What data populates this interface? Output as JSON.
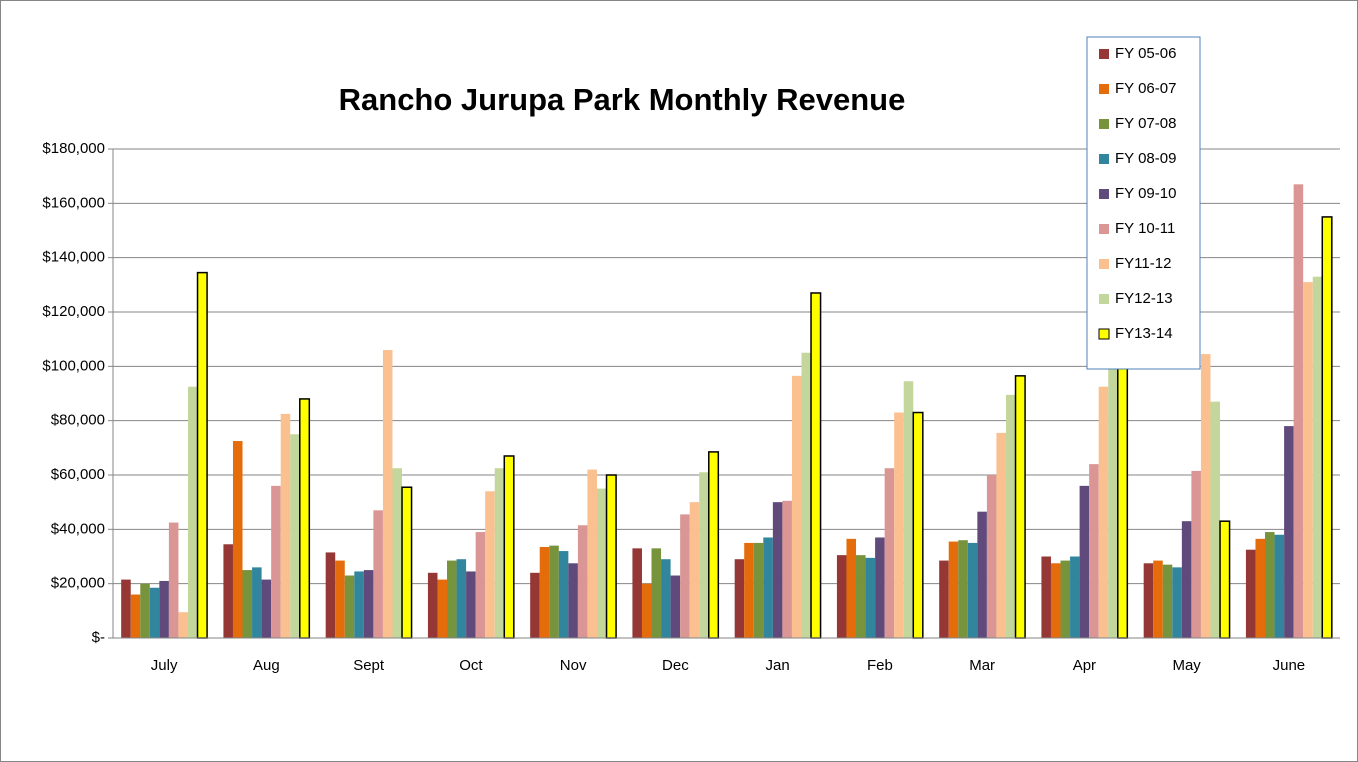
{
  "chart_data": {
    "type": "bar",
    "title": "Rancho Jurupa Park Monthly Revenue",
    "categories": [
      "July",
      "Aug",
      "Sept",
      "Oct",
      "Nov",
      "Dec",
      "Jan",
      "Feb",
      "Mar",
      "Apr",
      "May",
      "June"
    ],
    "series": [
      {
        "name": "FY 05-06",
        "color": "#953735",
        "values": [
          21500,
          34500,
          31500,
          24000,
          24000,
          33000,
          29000,
          30500,
          28500,
          30000,
          27500,
          32500
        ]
      },
      {
        "name": "FY 06-07",
        "color": "#e46c0a",
        "values": [
          16000,
          72500,
          28500,
          21500,
          33500,
          20000,
          35000,
          36500,
          35500,
          27500,
          28500,
          36500
        ]
      },
      {
        "name": "FY 07-08",
        "color": "#77933c",
        "values": [
          20000,
          25000,
          23000,
          28500,
          34000,
          33000,
          35000,
          30500,
          36000,
          28500,
          27000,
          39000
        ]
      },
      {
        "name": "FY 08-09",
        "color": "#31859c",
        "values": [
          18500,
          26000,
          24500,
          29000,
          32000,
          29000,
          37000,
          29500,
          35000,
          30000,
          26000,
          38000
        ]
      },
      {
        "name": "FY 09-10",
        "color": "#604a7b",
        "values": [
          21000,
          21500,
          25000,
          24500,
          27500,
          23000,
          50000,
          37000,
          46500,
          56000,
          43000,
          78000
        ]
      },
      {
        "name": "FY 10-11",
        "color": "#d99694",
        "values": [
          42500,
          56000,
          47000,
          39000,
          41500,
          45500,
          50500,
          62500,
          60000,
          64000,
          61500,
          167000
        ]
      },
      {
        "name": "FY11-12",
        "color": "#fac090",
        "values": [
          9500,
          82500,
          106000,
          54000,
          62000,
          50000,
          96500,
          83000,
          75500,
          92500,
          104500,
          131000
        ]
      },
      {
        "name": "FY12-13",
        "color": "#c3d69b",
        "values": [
          92500,
          75000,
          62500,
          62500,
          55000,
          61000,
          105000,
          94500,
          89500,
          101000,
          87000,
          133000
        ]
      },
      {
        "name": "FY13-14",
        "color": "#ffff00",
        "outline": "#000000",
        "values": [
          134500,
          88000,
          55500,
          67000,
          60000,
          68500,
          127000,
          83000,
          96500,
          108000,
          43000,
          155000
        ]
      }
    ],
    "ylim": [
      0,
      180000
    ],
    "yticks": [
      {
        "value": 0,
        "label": "$-"
      },
      {
        "value": 20000,
        "label": "$20,000"
      },
      {
        "value": 40000,
        "label": "$40,000"
      },
      {
        "value": 60000,
        "label": "$60,000"
      },
      {
        "value": 80000,
        "label": "$80,000"
      },
      {
        "value": 100000,
        "label": "$100,000"
      },
      {
        "value": 120000,
        "label": "$120,000"
      },
      {
        "value": 140000,
        "label": "$140,000"
      },
      {
        "value": 160000,
        "label": "$160,000"
      },
      {
        "value": 180000,
        "label": "$180,000"
      }
    ],
    "grid": true,
    "legend": "top-right"
  }
}
